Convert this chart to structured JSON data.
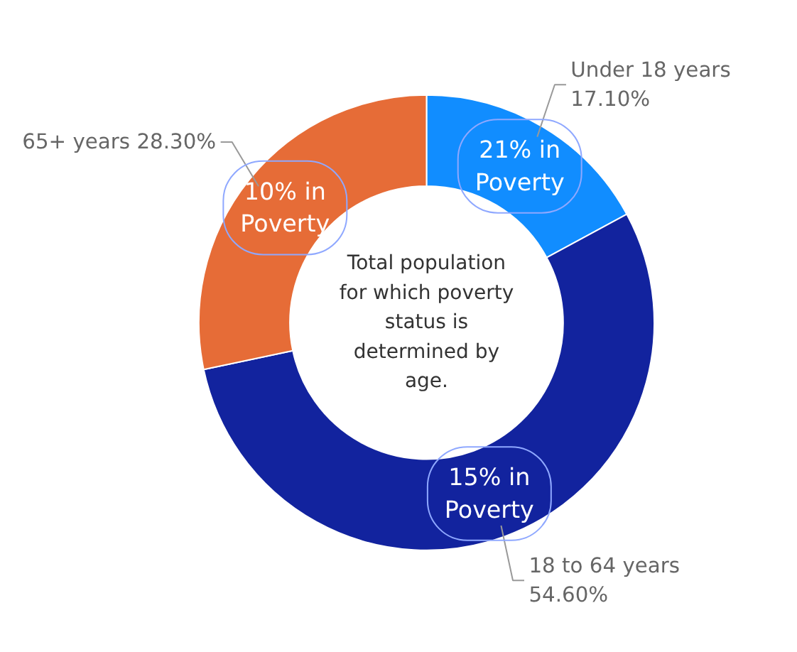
{
  "chart_data": {
    "type": "donut",
    "title": "Total population for which poverty status is determined by age.",
    "categories": [
      "Under 18 years",
      "18 to 64 years",
      "65+ years"
    ],
    "values": [
      17.1,
      54.6,
      28.3
    ],
    "value_labels": [
      "17.10%",
      "54.60%",
      "28.30%"
    ],
    "colors": [
      "#118dff",
      "#12239e",
      "#e66c37"
    ],
    "annotations": [
      "21% in Poverty",
      "15% in Poverty",
      "10% in Poverty"
    ]
  }
}
